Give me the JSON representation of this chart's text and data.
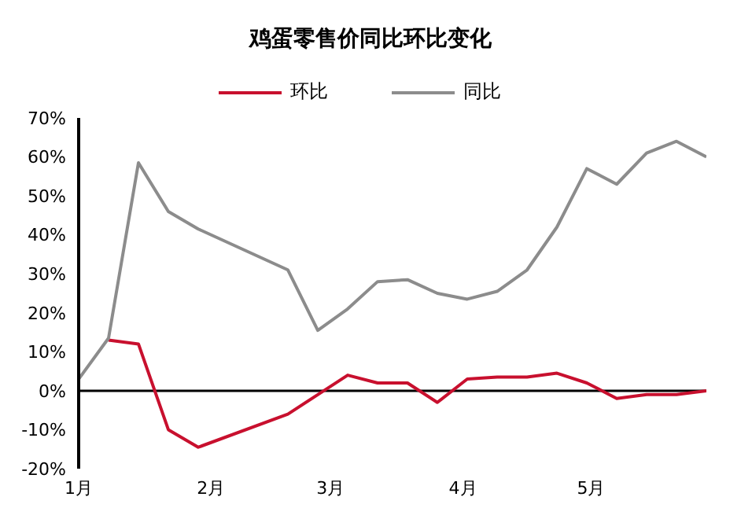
{
  "chart_data": {
    "type": "line",
    "title": "鸡蛋零售价同比环比变化",
    "xlim": [
      "--01-01",
      "--05-28"
    ],
    "xticks": [
      {
        "value": "--01-01",
        "label": "1月"
      },
      {
        "value": "--02-01",
        "label": "2月"
      },
      {
        "value": "--03-01",
        "label": "3月"
      },
      {
        "value": "--04-01",
        "label": "4月"
      },
      {
        "value": "--05-01",
        "label": "5月"
      }
    ],
    "ylim": [
      -20,
      70
    ],
    "yticks": [
      {
        "value": -20,
        "label": "-20%"
      },
      {
        "value": -10,
        "label": "-10%"
      },
      {
        "value": 0,
        "label": "0%"
      },
      {
        "value": 10,
        "label": "10%"
      },
      {
        "value": 20,
        "label": "20%"
      },
      {
        "value": 30,
        "label": "30%"
      },
      {
        "value": 40,
        "label": "40%"
      },
      {
        "value": 50,
        "label": "50%"
      },
      {
        "value": 60,
        "label": "60%"
      },
      {
        "value": 70,
        "label": "70%"
      }
    ],
    "series": [
      {
        "name": "环比",
        "color": "#c8102e",
        "x": [
          "--01-08",
          "--01-15",
          "--01-22",
          "--01-29",
          "--02-19",
          "--02-26",
          "--03-05",
          "--03-12",
          "--03-19",
          "--03-26",
          "--04-02",
          "--04-09",
          "--04-16",
          "--04-23",
          "--04-30",
          "--05-07",
          "--05-14",
          "--05-21",
          "--05-28"
        ],
        "values": [
          13,
          12,
          -10,
          -14.5,
          -6,
          -1,
          4,
          2,
          2,
          -3,
          3,
          3.5,
          3.5,
          4.5,
          2,
          -2,
          -1,
          -1,
          0
        ]
      },
      {
        "name": "同比",
        "color": "#8c8c8c",
        "x": [
          "--01-01",
          "--01-08",
          "--01-15",
          "--01-22",
          "--01-29",
          "--02-19",
          "--02-26",
          "--03-05",
          "--03-12",
          "--03-19",
          "--03-26",
          "--04-02",
          "--04-09",
          "--04-16",
          "--04-23",
          "--04-30",
          "--05-07",
          "--05-14",
          "--05-21",
          "--05-28"
        ],
        "values": [
          3,
          13.5,
          58.5,
          46,
          41.5,
          31,
          15.5,
          21,
          28,
          28.5,
          25,
          23.5,
          25.5,
          31,
          42,
          57,
          53,
          61,
          64,
          60
        ]
      }
    ],
    "ref_lines": [
      {
        "axis": "y",
        "value": 0,
        "color": "#000000"
      }
    ],
    "legend": "top",
    "grid": false,
    "marker": "none",
    "line_style": "solid"
  }
}
